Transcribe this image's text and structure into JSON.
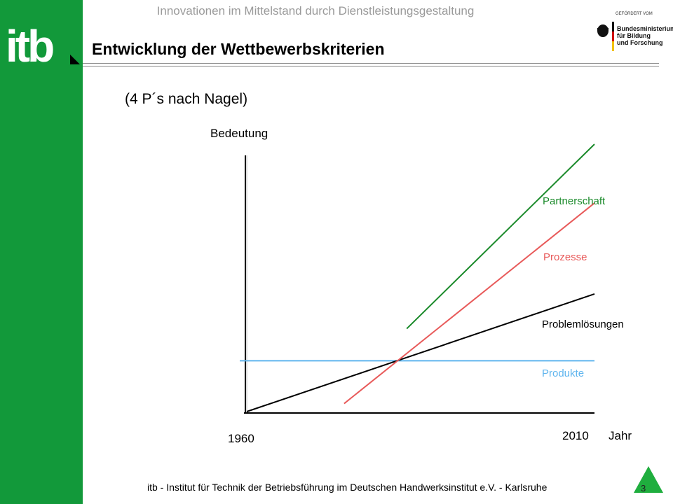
{
  "header": {
    "conference_text": "Innovationen im Mittelstand durch Dienstleistungsgestaltung",
    "logo_text": "itb",
    "sponsor": {
      "label": "GEFÖRDERT VOM",
      "ministry_lines": [
        "Bundesministerium",
        "für Bildung",
        "und Forschung"
      ]
    }
  },
  "slide": {
    "title": "Entwicklung der Wettbewerbskriterien",
    "subtitle": "(4 P´s nach Nagel)"
  },
  "chart_data": {
    "type": "line",
    "ylabel": "Bedeutung",
    "xlabel": "Jahr",
    "x_ticks": [
      "1960",
      "2010"
    ],
    "xlim": [
      1960,
      2010
    ],
    "ylim": [
      0,
      100
    ],
    "series": [
      {
        "name": "Produkte",
        "color": "#5fb5ee",
        "points": [
          [
            1960,
            19
          ],
          [
            2010,
            19
          ]
        ]
      },
      {
        "name": "Problemlösungen",
        "color": "#000000",
        "points": [
          [
            1960,
            0
          ],
          [
            2010,
            44
          ]
        ]
      },
      {
        "name": "Prozesse",
        "color": "#e85a5a",
        "points": [
          [
            1974,
            3
          ],
          [
            2010,
            78
          ]
        ]
      },
      {
        "name": "Partnerschaft",
        "color": "#1a8a2a",
        "points": [
          [
            1983,
            31
          ],
          [
            2010,
            100
          ]
        ]
      }
    ]
  },
  "footer": {
    "text": "itb - Institut für Technik der Betriebsführung im Deutschen Handwerksinstitut e.V. - Karlsruhe",
    "page_number": "3"
  }
}
